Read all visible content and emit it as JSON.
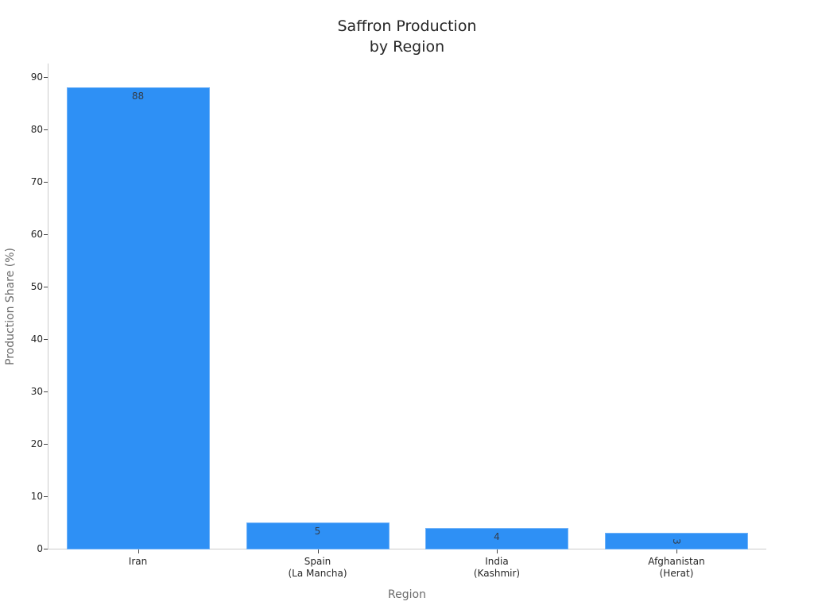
{
  "chart_data": {
    "type": "bar",
    "title": "Saffron Production by Region",
    "title_lines": [
      "Saffron Production",
      "by Region"
    ],
    "xlabel": "Region",
    "ylabel": "Production Share (%)",
    "categories": [
      "Iran",
      "Spain (La Mancha)",
      "India (Kashmir)",
      "Afghanistan (Herat)"
    ],
    "category_lines": [
      [
        "Iran"
      ],
      [
        "Spain",
        "(La Mancha)"
      ],
      [
        "India",
        "(Kashmir)"
      ],
      [
        "Afghanistan",
        "(Herat)"
      ]
    ],
    "values": [
      88,
      5,
      4,
      3
    ],
    "data_labels": [
      "88",
      "5",
      "4",
      "3"
    ],
    "ylim": [
      0,
      92.6
    ],
    "yticks": [
      0,
      10,
      20,
      30,
      40,
      50,
      60,
      70,
      80,
      90
    ],
    "grid": false,
    "legend": null,
    "bar_color": "#2e90f5"
  }
}
